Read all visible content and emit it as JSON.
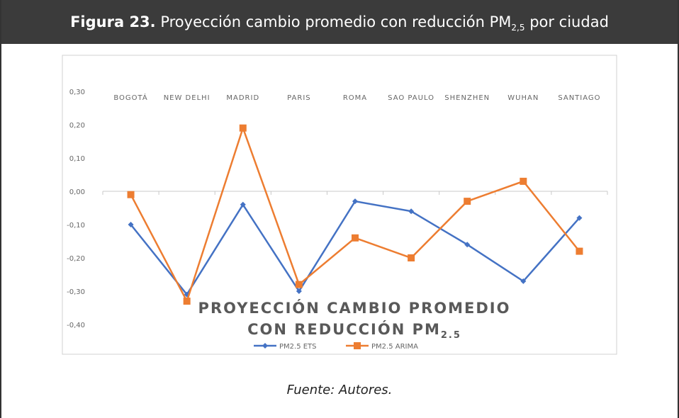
{
  "header": {
    "label": "Figura 23.",
    "text": "Proyección cambio promedio con reducción PM",
    "subscript": "2,5",
    "text_end": "por ciudad"
  },
  "chart_data": {
    "type": "line",
    "title": [
      "PROYECCIÓN CAMBIO PROMEDIO",
      "CON REDUCCIÓN PM"
    ],
    "title_subscript": "2.5",
    "categories": [
      "BOGOTÁ",
      "NEW DELHI",
      "MADRID",
      "PARIS",
      "ROMA",
      "SAO PAULO",
      "SHENZHEN",
      "WUHAN",
      "SANTIAGO"
    ],
    "series": [
      {
        "name": "PM2.5 ETS",
        "color": "#4472c4",
        "marker": "diamond",
        "values": [
          -0.1,
          -0.31,
          -0.04,
          -0.3,
          -0.03,
          -0.06,
          -0.16,
          -0.27,
          -0.08
        ]
      },
      {
        "name": "PM2.5 ARIMA",
        "color": "#ed7d31",
        "marker": "square",
        "values": [
          -0.01,
          -0.33,
          0.19,
          -0.28,
          -0.14,
          -0.2,
          -0.03,
          0.03,
          -0.18
        ]
      }
    ],
    "ylim": [
      -0.4,
      0.3
    ],
    "yticks": [
      {
        "value": 0.3,
        "label": "0,30"
      },
      {
        "value": 0.2,
        "label": "0,20"
      },
      {
        "value": 0.1,
        "label": "0,10"
      },
      {
        "value": 0.0,
        "label": "0,00"
      },
      {
        "value": -0.1,
        "label": "-0,10"
      },
      {
        "value": -0.2,
        "label": "-0,20"
      },
      {
        "value": -0.3,
        "label": "-0,30"
      },
      {
        "value": -0.4,
        "label": "-0,40"
      }
    ],
    "legend": "bottom"
  },
  "footer": "Fuente: Autores."
}
